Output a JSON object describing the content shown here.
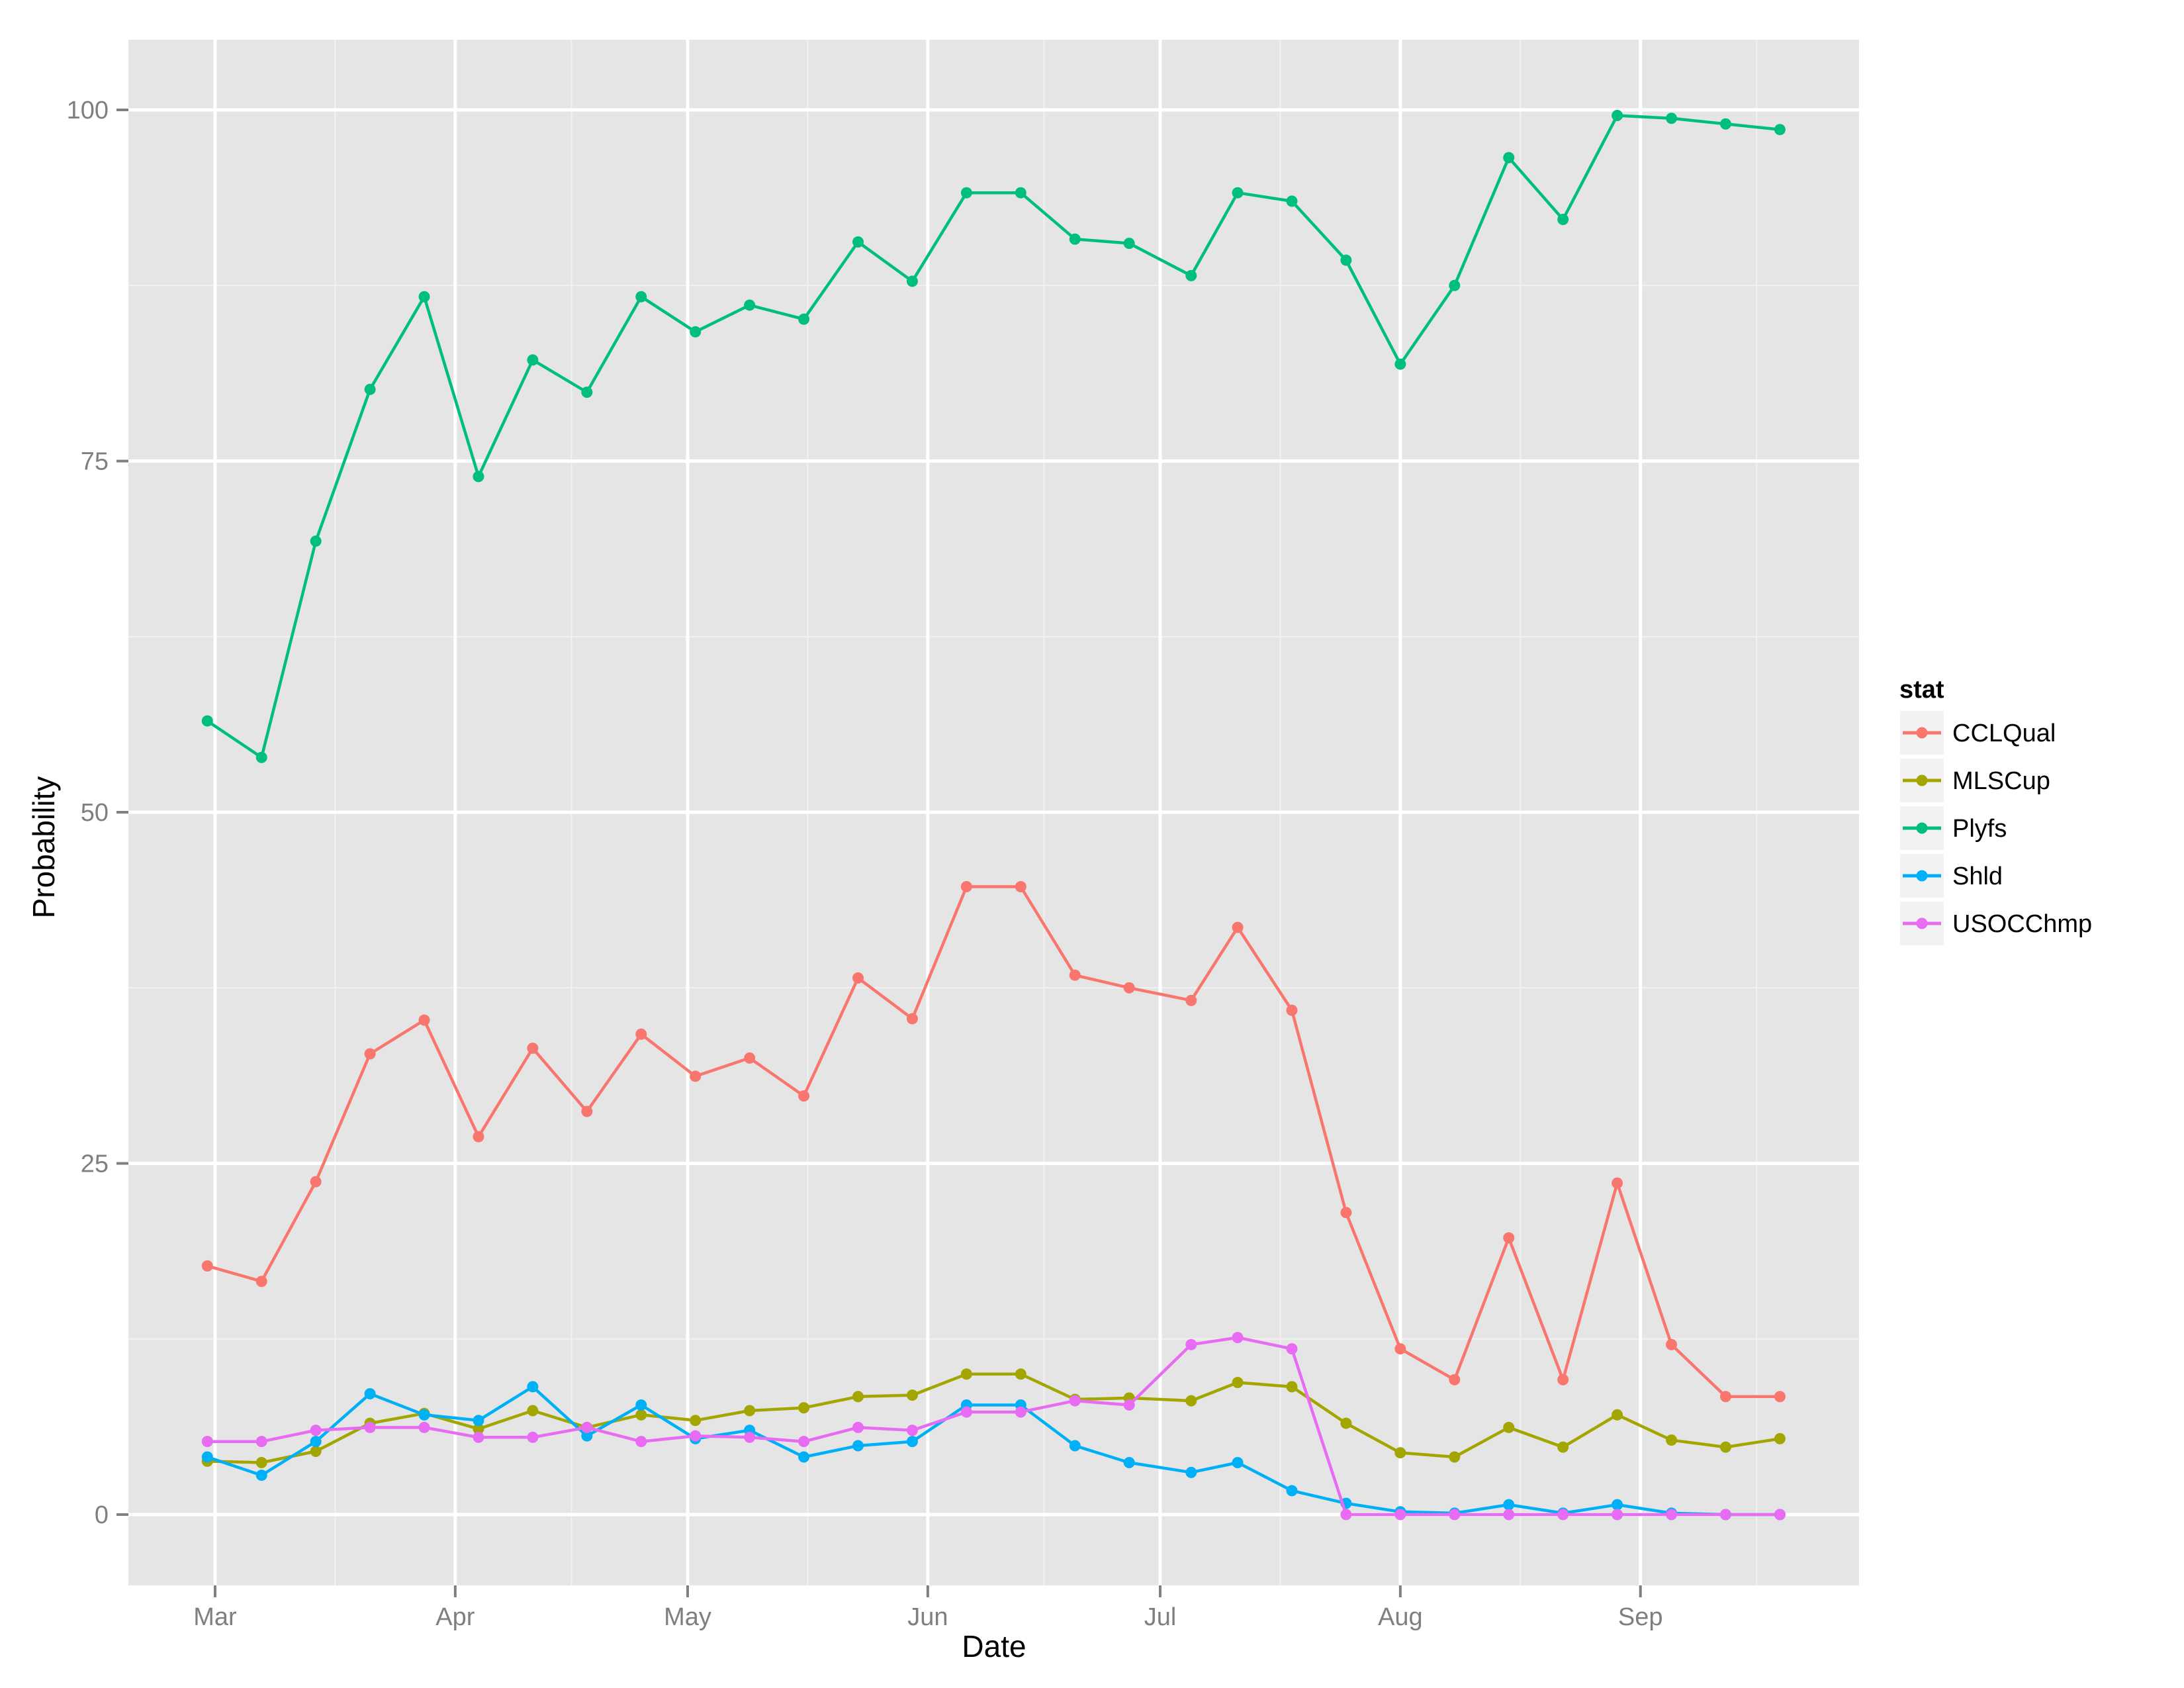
{
  "chart_data": {
    "type": "line",
    "title": "",
    "xlabel": "Date",
    "ylabel": "Probability",
    "ylim": [
      -5,
      105
    ],
    "yticks": [
      0,
      25,
      50,
      75,
      100
    ],
    "xticks": [
      "Mar",
      "Apr",
      "May",
      "Jun",
      "Jul",
      "Aug",
      "Sep"
    ],
    "grid": true,
    "legend_position": "right",
    "legend_title": "stat",
    "x": [
      "Feb 28",
      "Mar 7",
      "Mar 14",
      "Mar 21",
      "Mar 28",
      "Apr 4",
      "Apr 11",
      "Apr 18",
      "Apr 25",
      "May 2",
      "May 9",
      "May 16",
      "May 23",
      "May 30",
      "Jun 6",
      "Jun 13",
      "Jun 20",
      "Jun 27",
      "Jul 5",
      "Jul 11",
      "Jul 18",
      "Jul 25",
      "Aug 1",
      "Aug 8",
      "Aug 15",
      "Aug 22",
      "Aug 29",
      "Sep 5",
      "Sep 12",
      "Sep 19"
    ],
    "x_day_offset_from_mar1": [
      -1,
      6,
      13,
      20,
      27,
      34,
      41,
      48,
      55,
      62,
      69,
      76,
      83,
      90,
      97,
      104,
      111,
      118,
      126,
      132,
      139,
      146,
      153,
      160,
      167,
      174,
      181,
      188,
      195,
      202
    ],
    "series": [
      {
        "name": "CCLQual",
        "color": "#F8766D",
        "values": [
          17.7,
          16.6,
          23.7,
          32.8,
          35.2,
          26.9,
          33.2,
          28.7,
          34.2,
          31.2,
          32.5,
          29.8,
          38.2,
          35.3,
          44.7,
          44.7,
          38.4,
          37.5,
          36.6,
          41.8,
          35.9,
          21.5,
          11.8,
          9.6,
          19.7,
          9.6,
          23.6,
          12.1,
          8.4,
          8.4
        ]
      },
      {
        "name": "MLSCup",
        "color": "#A3A500",
        "values": [
          3.8,
          3.7,
          4.5,
          6.5,
          7.2,
          6.1,
          7.4,
          6.2,
          7.1,
          6.7,
          7.4,
          7.6,
          8.4,
          8.5,
          10.0,
          10.0,
          8.2,
          8.3,
          8.1,
          9.4,
          9.1,
          6.5,
          4.4,
          4.1,
          6.2,
          4.8,
          7.1,
          5.3,
          4.8,
          5.4
        ]
      },
      {
        "name": "Plyfs",
        "color": "#00BF7D",
        "values": [
          56.5,
          53.9,
          69.3,
          80.1,
          86.7,
          73.9,
          82.2,
          79.9,
          86.7,
          84.2,
          86.1,
          85.1,
          90.6,
          87.8,
          94.1,
          94.1,
          90.8,
          90.5,
          88.2,
          94.1,
          93.5,
          89.3,
          81.9,
          87.5,
          96.6,
          92.2,
          99.6,
          99.4,
          99.0,
          98.6
        ]
      },
      {
        "name": "Shld",
        "color": "#00B0F6",
        "values": [
          4.1,
          2.8,
          5.2,
          8.6,
          7.1,
          6.7,
          9.1,
          5.6,
          7.8,
          5.4,
          6.0,
          4.1,
          4.9,
          5.2,
          7.8,
          7.8,
          4.9,
          3.7,
          3.0,
          3.7,
          1.7,
          0.8,
          0.2,
          0.1,
          0.7,
          0.1,
          0.7,
          0.1,
          0.0,
          0.0
        ]
      },
      {
        "name": "USOCChmp",
        "color": "#E76BF3",
        "values": [
          5.2,
          5.2,
          6.0,
          6.2,
          6.2,
          5.5,
          5.5,
          6.2,
          5.2,
          5.6,
          5.5,
          5.2,
          6.2,
          6.0,
          7.3,
          7.3,
          8.1,
          7.8,
          12.1,
          12.6,
          11.8,
          0.0,
          0.0,
          0.0,
          0.0,
          0.0,
          0.0,
          0.0,
          0.0,
          0.0
        ]
      }
    ]
  },
  "axes": {
    "x_title": "Date",
    "y_title": "Probability",
    "y_tick_labels": [
      "0",
      "25",
      "50",
      "75",
      "100"
    ],
    "x_tick_labels": [
      "Mar",
      "Apr",
      "May",
      "Jun",
      "Jul",
      "Aug",
      "Sep"
    ]
  },
  "legend": {
    "title": "stat",
    "items": [
      {
        "label": "CCLQual",
        "color": "#F8766D"
      },
      {
        "label": "MLSCup",
        "color": "#A3A500"
      },
      {
        "label": "Plyfs",
        "color": "#00BF7D"
      },
      {
        "label": "Shld",
        "color": "#00B0F6"
      },
      {
        "label": "USOCChmp",
        "color": "#E76BF3"
      }
    ]
  },
  "theme": {
    "panel_bg": "#E5E5E5",
    "grid_major": "#FFFFFF",
    "grid_minor": "#F2F2F2",
    "tick_color": "#7F7F7F",
    "legend_key_bg": "#F2F2F2"
  }
}
